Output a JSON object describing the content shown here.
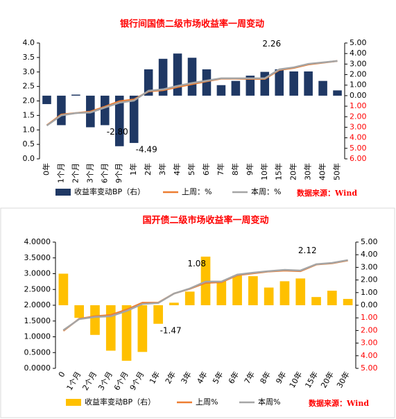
{
  "chart_data": [
    {
      "type": "combo",
      "title": "银行间国债二级市场收益率一周变动",
      "source": "数据来源：Wind",
      "categories": [
        "0年",
        "1个月",
        "2个月",
        "3个月",
        "6个月",
        "9个月",
        "1年",
        "2年",
        "3年",
        "4年",
        "5年",
        "6年",
        "7年",
        "8年",
        "9年",
        "10年",
        "15年",
        "20年",
        "30年",
        "40年",
        "50年"
      ],
      "series": [
        {
          "name": "收益率变动BP（右）",
          "type": "bar",
          "axis": "y2",
          "color": "#1f3864",
          "values": [
            -0.8,
            -2.8,
            0.1,
            -3.0,
            -2.8,
            -4.8,
            -4.49,
            2.5,
            3.5,
            4.0,
            3.6,
            2.5,
            1.0,
            1.4,
            1.9,
            2.26,
            2.5,
            2.3,
            2.3,
            1.4,
            0.5
          ],
          "value_labels": [
            null,
            null,
            null,
            null,
            "-2.80",
            null,
            "-4.49",
            null,
            null,
            null,
            null,
            null,
            null,
            null,
            null,
            "2.26",
            null,
            null,
            null,
            null,
            null
          ]
        },
        {
          "name": "上周：%",
          "type": "line",
          "color": "#ed7d31",
          "values": [
            1.16,
            1.53,
            1.58,
            1.63,
            1.8,
            1.99,
            2.05,
            2.33,
            2.37,
            2.48,
            2.58,
            2.68,
            2.77,
            2.77,
            2.76,
            2.76,
            3.07,
            3.14,
            3.26,
            3.32,
            3.38
          ]
        },
        {
          "name": "本周：%",
          "type": "line",
          "color": "#a5a5a5",
          "values": [
            1.15,
            1.5,
            1.58,
            1.6,
            1.77,
            1.94,
            2.01,
            2.35,
            2.4,
            2.52,
            2.62,
            2.7,
            2.78,
            2.78,
            2.78,
            2.78,
            3.09,
            3.16,
            3.28,
            3.33,
            3.38
          ]
        }
      ],
      "ylim": [
        0,
        4
      ],
      "yticks": [
        {
          "value": 0,
          "label": "0.0"
        },
        {
          "value": 0.5,
          "label": "0.5"
        },
        {
          "value": 1,
          "label": "1.0"
        },
        {
          "value": 1.5,
          "label": "1.5"
        },
        {
          "value": 2,
          "label": "2.0"
        },
        {
          "value": 2.5,
          "label": "2.5"
        },
        {
          "value": 3,
          "label": "3.0"
        },
        {
          "value": 3.5,
          "label": "3.5"
        },
        {
          "value": 4,
          "label": "4.0"
        }
      ],
      "y2lim": [
        -6,
        5
      ],
      "y2ticks": [
        {
          "value": 5,
          "label": "5.00"
        },
        {
          "value": 4,
          "label": "4.00"
        },
        {
          "value": 3,
          "label": "3.00"
        },
        {
          "value": 2,
          "label": "2.00"
        },
        {
          "value": 1,
          "label": "1.00"
        },
        {
          "value": 0,
          "label": "0.00"
        },
        {
          "value": -1,
          "label": "1.00"
        },
        {
          "value": -2,
          "label": "2.00"
        },
        {
          "value": -3,
          "label": "3.00"
        },
        {
          "value": -4,
          "label": "4.00"
        },
        {
          "value": -5,
          "label": "5.00"
        },
        {
          "value": -6,
          "label": "6.00"
        }
      ],
      "negative_tick_color": "#ff0000"
    },
    {
      "type": "combo",
      "title": "国开债二级市场收益率一周变动",
      "source": "数据来源：Wind",
      "categories": [
        "0",
        "1个月",
        "2个月",
        "3个月",
        "6个月",
        "9个月",
        "1年",
        "2年",
        "3年",
        "4年",
        "5年",
        "6年",
        "7年",
        "8年",
        "9年",
        "10年",
        "15年",
        "20年",
        "30年"
      ],
      "series": [
        {
          "name": "收益率变动BP（右）",
          "type": "bar",
          "axis": "y2",
          "color": "#ffc000",
          "values": [
            2.5,
            -1.0,
            -2.35,
            -3.6,
            -4.4,
            -3.7,
            -1.47,
            0.2,
            1.08,
            3.85,
            1.9,
            2.35,
            2.3,
            1.4,
            1.9,
            2.12,
            0.65,
            1.15,
            0.5
          ],
          "value_labels": [
            null,
            null,
            null,
            null,
            null,
            null,
            "-1.47",
            null,
            "1.08",
            null,
            null,
            null,
            null,
            null,
            null,
            "2.12",
            null,
            null,
            null
          ]
        },
        {
          "name": "上周%",
          "type": "line",
          "color": "#ed7d31",
          "values": [
            1.19,
            1.57,
            1.65,
            1.69,
            1.86,
            2.08,
            2.08,
            2.37,
            2.52,
            2.71,
            2.73,
            2.95,
            3.01,
            3.07,
            3.1,
            3.08,
            3.29,
            3.33,
            3.42
          ]
        },
        {
          "name": "本周%",
          "type": "line",
          "color": "#a5a5a5",
          "values": [
            1.21,
            1.56,
            1.63,
            1.65,
            1.82,
            2.04,
            2.07,
            2.37,
            2.53,
            2.75,
            2.75,
            2.97,
            3.03,
            3.08,
            3.12,
            3.1,
            3.3,
            3.34,
            3.43
          ]
        }
      ],
      "ylim": [
        0,
        4
      ],
      "yticks": [
        {
          "value": 0,
          "label": "0.0000"
        },
        {
          "value": 0.5,
          "label": "0.5000"
        },
        {
          "value": 1,
          "label": "1.0000"
        },
        {
          "value": 1.5,
          "label": "1.5000"
        },
        {
          "value": 2,
          "label": "2.0000"
        },
        {
          "value": 2.5,
          "label": "2.5000"
        },
        {
          "value": 3,
          "label": "3.0000"
        },
        {
          "value": 3.5,
          "label": "3.5000"
        },
        {
          "value": 4,
          "label": "4.0000"
        }
      ],
      "y2lim": [
        -5,
        5
      ],
      "y2ticks": [
        {
          "value": 5,
          "label": "5.00"
        },
        {
          "value": 4,
          "label": "4.00"
        },
        {
          "value": 3,
          "label": "3.00"
        },
        {
          "value": 2,
          "label": "2.00"
        },
        {
          "value": 1,
          "label": "1.00"
        },
        {
          "value": 0,
          "label": "0.00"
        },
        {
          "value": -1,
          "label": "1.00"
        },
        {
          "value": -2,
          "label": "2.00"
        },
        {
          "value": -3,
          "label": "3.00"
        },
        {
          "value": -4,
          "label": "4.00"
        },
        {
          "value": -5,
          "label": "5.00"
        }
      ],
      "negative_tick_color": "#ff0000"
    }
  ]
}
